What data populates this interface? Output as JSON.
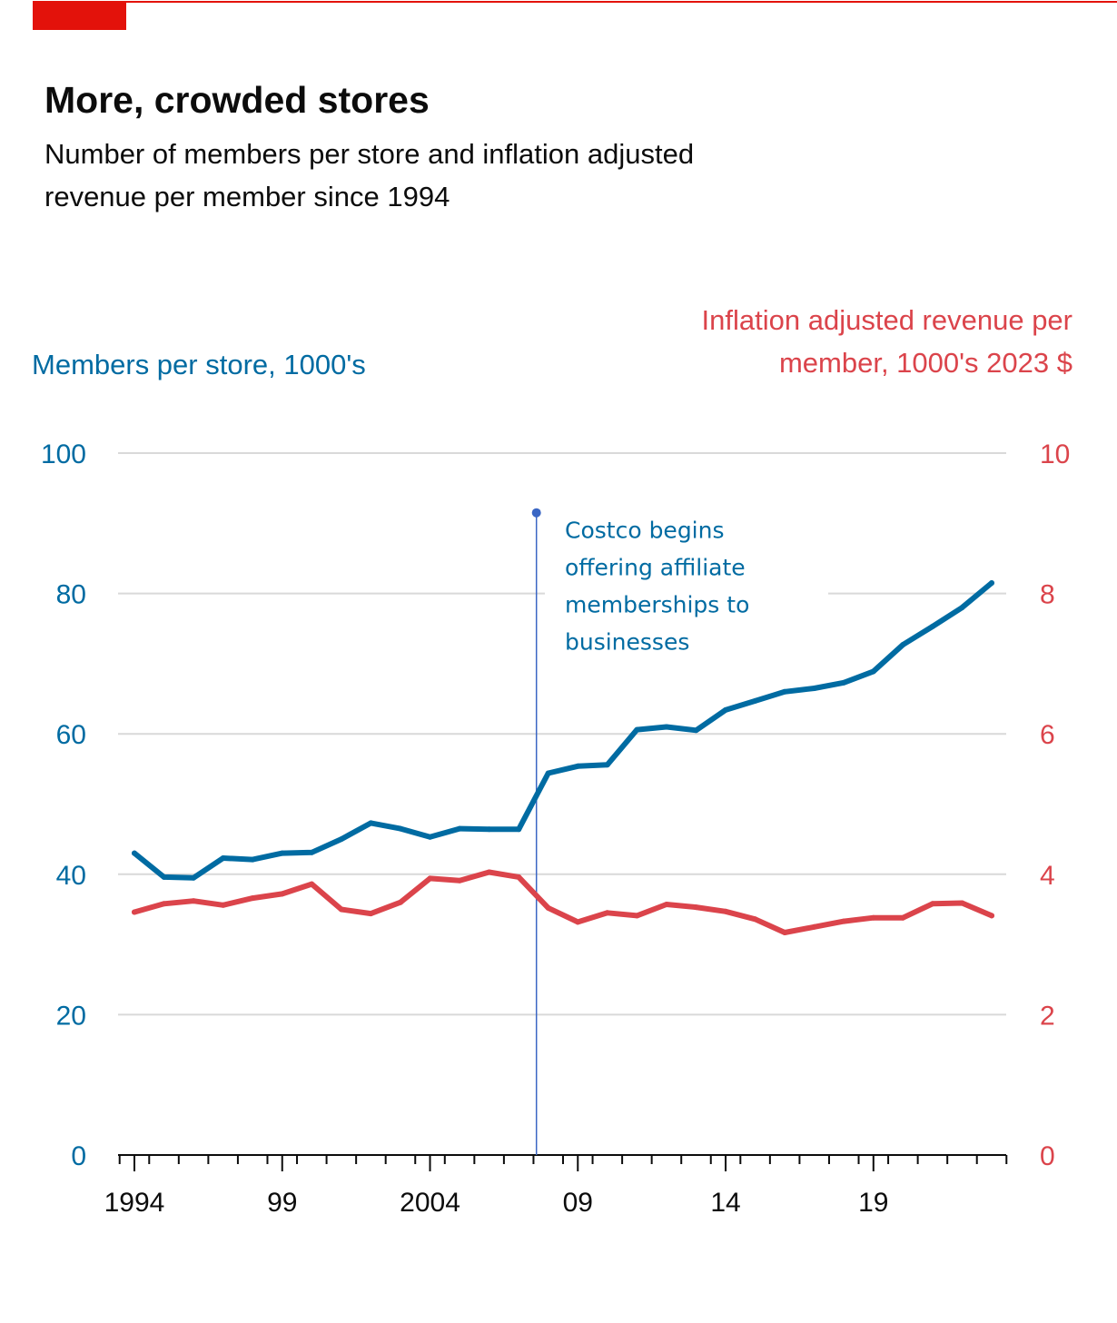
{
  "title": "More, crowded stores",
  "subtitle": "Number of members per store and inflation adjusted revenue per member since 1994",
  "colors": {
    "brand": "#e3120b",
    "members": "#006ba2",
    "revenue": "#db444b",
    "annotation_line": "#3a66c4",
    "grid": "#d9d9d9",
    "axis": "#0c0c0c"
  },
  "chart_data": {
    "type": "line",
    "title": "More, crowded stores",
    "subtitle": "Number of members per store and inflation adjusted revenue per member since 1994",
    "x": [
      1994,
      1995,
      1996,
      1997,
      1998,
      1999,
      2000,
      2001,
      2002,
      2003,
      2004,
      2005,
      2006,
      2007,
      2008,
      2009,
      2010,
      2011,
      2012,
      2013,
      2014,
      2015,
      2016,
      2017,
      2018,
      2019,
      2020,
      2021,
      2022,
      2023
    ],
    "xlim": [
      1993.5,
      2023.5
    ],
    "x_ticks": [
      1994,
      1999,
      2004,
      2009,
      2014,
      2019
    ],
    "x_tick_labels": [
      "1994",
      "99",
      "2004",
      "09",
      "14",
      "19"
    ],
    "y_left": {
      "label": "Members per store, 1000's",
      "lim": [
        0,
        100
      ],
      "ticks": [
        0,
        20,
        40,
        60,
        80,
        100
      ]
    },
    "y_right": {
      "label": "Inflation adjusted revenue per member, 1000's 2023 $",
      "lim": [
        0,
        10
      ],
      "ticks": [
        0,
        2,
        4,
        6,
        8,
        10
      ]
    },
    "grid": true,
    "series": [
      {
        "axis": "left",
        "color": "#006ba2",
        "values": [
          43.0,
          39.6,
          39.5,
          42.3,
          42.1,
          43.0,
          43.1,
          45.0,
          47.3,
          46.5,
          45.3,
          46.5,
          46.4,
          46.4,
          54.4,
          55.4,
          55.6,
          60.6,
          61.0,
          60.5,
          63.4,
          64.7,
          66.0,
          66.5,
          67.3,
          68.9,
          72.7,
          75.3,
          78.0,
          81.5
        ]
      },
      {
        "axis": "right",
        "color": "#db444b",
        "values": [
          3.46,
          3.58,
          3.62,
          3.56,
          3.66,
          3.72,
          3.86,
          3.5,
          3.44,
          3.6,
          3.94,
          3.91,
          4.03,
          3.96,
          3.52,
          3.32,
          3.45,
          3.41,
          3.57,
          3.53,
          3.47,
          3.36,
          3.17,
          3.25,
          3.33,
          3.38,
          3.38,
          3.58,
          3.59,
          3.41
        ]
      }
    ],
    "annotations": [
      {
        "x": 2007.6,
        "y_top": 91.5,
        "text_lines": [
          "Costco begins",
          "offering affiliate",
          "memberships to",
          "businesses"
        ]
      }
    ]
  }
}
